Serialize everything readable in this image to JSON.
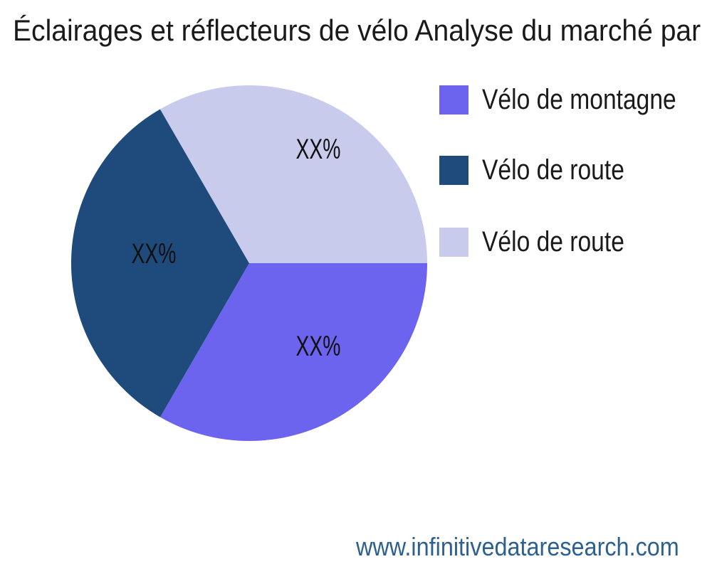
{
  "title": "Éclairages et réflecteurs de vélo Analyse du marché par",
  "chart_data": {
    "type": "pie",
    "title": "Éclairages et réflecteurs de vélo Analyse du marché par",
    "start_angle_deg": 0,
    "direction": "clockwise",
    "legend_position": "right",
    "slices": [
      {
        "label": "Vélo de montagne",
        "value": 33.33,
        "pct_label": "XX%",
        "color": "#6C63EE"
      },
      {
        "label": "Vélo de route",
        "value": 33.33,
        "pct_label": "XX%",
        "color": "#1F4A7C"
      },
      {
        "label": "Vélo de route",
        "value": 33.34,
        "pct_label": "XX%",
        "color": "#C9CBED"
      }
    ]
  },
  "footer": {
    "url_text": "www.infinitivedataresearch.com",
    "color": "#2E608F"
  }
}
